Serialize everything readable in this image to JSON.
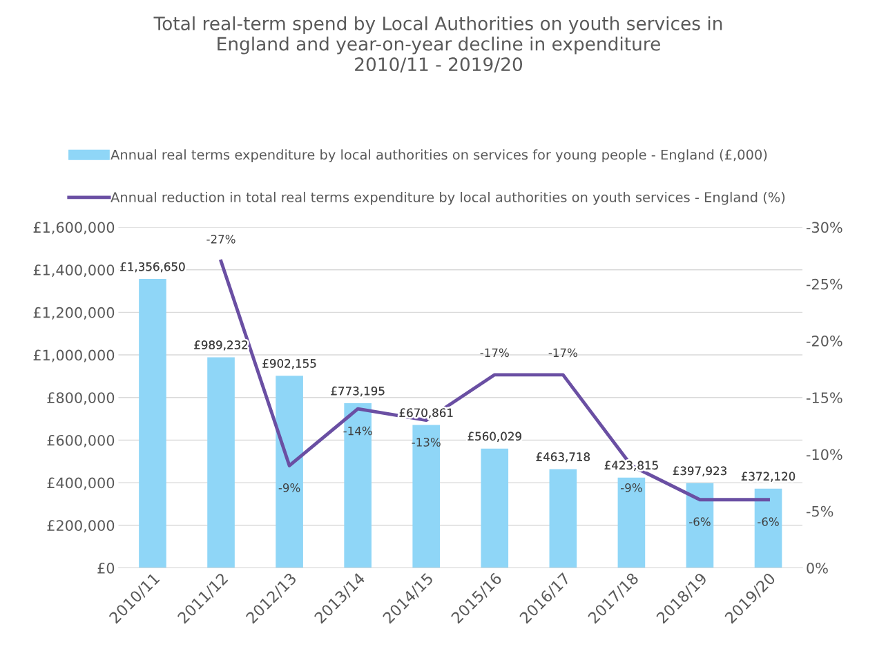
{
  "chart_data": {
    "type": "bar",
    "title": "Total real-term spend by Local Authorities on youth services in\nEngland and year-on-year decline in expenditure\n2010/11 - 2019/20",
    "categories": [
      "2010/11",
      "2011/12",
      "2012/13",
      "2013/14",
      "2014/15",
      "2015/16",
      "2016/17",
      "2017/18",
      "2018/19",
      "2019/20"
    ],
    "series": [
      {
        "name": "Annual real terms expenditure by local authorities on services for young people - England (£,000)",
        "color": "#8fd6f7",
        "values": [
          1356650,
          989232,
          902155,
          773195,
          670861,
          560029,
          463718,
          423815,
          397923,
          372120
        ],
        "value_labels": [
          "£1,356,650",
          "£989,232",
          "£902,155",
          "£773,195",
          "£670,861",
          "£560,029",
          "£463,718",
          "£423,815",
          "£397,923",
          "£372,120"
        ]
      },
      {
        "name": "Annual reduction in total real terms expenditure by local authorities on youth services - England (%)",
        "type": "line",
        "axis": "y2",
        "color": "#6a4fa3",
        "values": [
          null,
          -27,
          -9,
          -14,
          -13,
          -17,
          -17,
          -9,
          -6,
          -6
        ],
        "value_labels": [
          null,
          "-27%",
          "-9%",
          "-14%",
          "-13%",
          "-17%",
          "-17%",
          "-9%",
          "-6%",
          "-6%"
        ]
      }
    ],
    "ylim": [
      0,
      1600000
    ],
    "yticks": [
      {
        "value": 0,
        "label": "£0"
      },
      {
        "value": 200000,
        "label": "£200,000"
      },
      {
        "value": 400000,
        "label": "£400,000"
      },
      {
        "value": 600000,
        "label": "£600,000"
      },
      {
        "value": 800000,
        "label": "£800,000"
      },
      {
        "value": 1000000,
        "label": "£1,000,000"
      },
      {
        "value": 1200000,
        "label": "£1,200,000"
      },
      {
        "value": 1400000,
        "label": "£1,400,000"
      },
      {
        "value": 1600000,
        "label": "£1,600,000"
      }
    ],
    "y2lim": [
      0,
      -30
    ],
    "y2ticks": [
      {
        "value": 0,
        "label": "0%"
      },
      {
        "value": -5,
        "label": "-5%"
      },
      {
        "value": -10,
        "label": "-10%"
      },
      {
        "value": -15,
        "label": "-15%"
      },
      {
        "value": -20,
        "label": "-20%"
      },
      {
        "value": -25,
        "label": "-25%"
      },
      {
        "value": -30,
        "label": "-30%"
      }
    ],
    "grid": "y",
    "legend": "top",
    "marker": "none"
  }
}
